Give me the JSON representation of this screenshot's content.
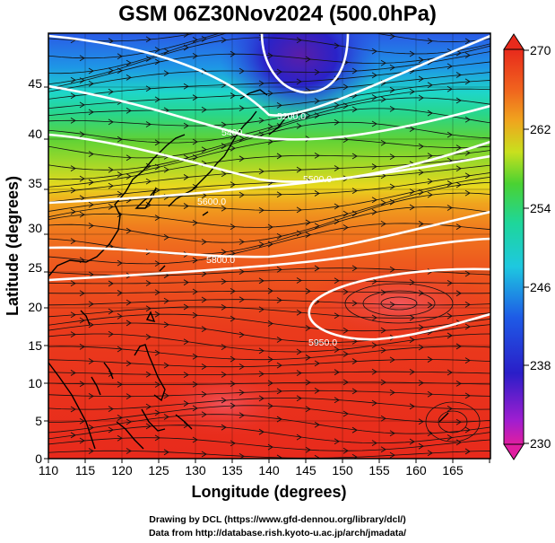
{
  "title": "GSM 06Z30Nov2024 (500.0hPa)",
  "xlabel": "Longitude (degrees)",
  "ylabel": "Latitude  (degrees)",
  "x_ticks": [
    "110",
    "115",
    "120",
    "125",
    "130",
    "135",
    "140",
    "145",
    "150",
    "155",
    "160",
    "165"
  ],
  "y_ticks": [
    "0",
    "5",
    "10",
    "15",
    "20",
    "25",
    "30",
    "35",
    "40",
    "45"
  ],
  "colorbar_labels": [
    "270",
    "262",
    "254",
    "246",
    "238",
    "230"
  ],
  "contour_labels": [
    "5200.0",
    "5400",
    "5500.0",
    "5600.0",
    "5800.0",
    "5950.0"
  ],
  "credits": [
    "Drawing by DCL (https://www.gfd-dennou.org/library/dcl/)",
    "Data from http://database.rish.kyoto-u.ac.jp/arch/jmadata/"
  ],
  "colors": {
    "warm": "#e82a1c",
    "orange": "#f07a1e",
    "yellow": "#e8d81e",
    "green": "#6fd430",
    "cyan": "#1ed6c8",
    "blue": "#1e3ed6",
    "purple": "#7a1ec8"
  },
  "chart_data": {
    "type": "heatmap",
    "title": "GSM 06Z30Nov2024 (500.0hPa)",
    "xlabel": "Longitude (degrees)",
    "ylabel": "Latitude  (degrees)",
    "xlim": [
      110,
      170
    ],
    "ylim": [
      0,
      50
    ],
    "colorbar": {
      "min": 230,
      "max": 270,
      "ticks": [
        270,
        262,
        254,
        246,
        238,
        230
      ]
    },
    "temperature_profile_by_latitude": [
      {
        "lat": 0,
        "value": 268
      },
      {
        "lat": 5,
        "value": 268
      },
      {
        "lat": 10,
        "value": 267
      },
      {
        "lat": 15,
        "value": 266
      },
      {
        "lat": 20,
        "value": 265
      },
      {
        "lat": 25,
        "value": 263
      },
      {
        "lat": 28,
        "value": 260
      },
      {
        "lat": 31,
        "value": 256
      },
      {
        "lat": 34,
        "value": 253
      },
      {
        "lat": 37,
        "value": 250
      },
      {
        "lat": 40,
        "value": 247
      },
      {
        "lat": 43,
        "value": 244
      },
      {
        "lat": 46,
        "value": 241
      },
      {
        "lat": 50,
        "value": 238
      }
    ],
    "cold_core": {
      "lon": 146,
      "lat": 48,
      "value": 232
    },
    "contours": [
      {
        "label": "5200.0",
        "lon": 143.5,
        "lat": 43
      },
      {
        "label": "5400",
        "lon": 133,
        "lat": 39.5
      },
      {
        "label": "5500.0",
        "lon": 146,
        "lat": 36
      },
      {
        "label": "5600.0",
        "lon": 128.5,
        "lat": 32
      },
      {
        "label": "5800.0",
        "lon": 131,
        "lat": 24.5
      },
      {
        "label": "5950.0",
        "lon": 146.5,
        "lat": 15.5
      }
    ]
  }
}
